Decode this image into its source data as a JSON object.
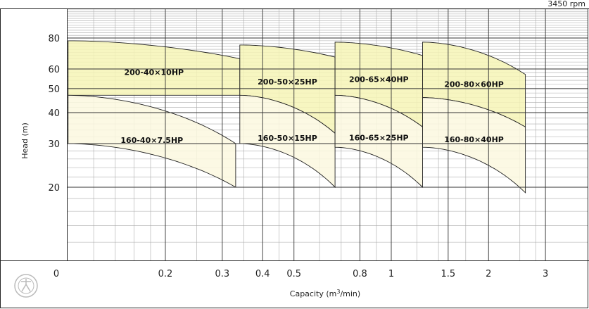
{
  "chart_data": {
    "type": "area",
    "speed_label": "3450 rpm",
    "xlabel": "Capacity (m",
    "xlabel_sup": "3",
    "xlabel_tail": "/min)",
    "ylabel": "Head (m)",
    "x_scale": "log",
    "y_scale": "log",
    "grid": true,
    "colors": {
      "upper_fill": "#f6f5b6",
      "lower_fill": "#fbf8df",
      "outline": "#222222",
      "grid_major": "#333333",
      "grid_minor": "#aaaaaa"
    },
    "y_ticks": [
      "80",
      "60",
      "50",
      "40",
      "30",
      "20"
    ],
    "x_ticks": [
      "0",
      "0.2",
      "0.3",
      "0.4",
      "0.5",
      "0.8",
      "1",
      "1.5",
      "2",
      "3"
    ],
    "regions": [
      {
        "label": "200-40×10HP",
        "tier": "upper",
        "q_min": 0.1,
        "q_max": 0.34,
        "head_left": [
          78,
          47
        ],
        "head_right": [
          66,
          47
        ]
      },
      {
        "label": "160-40×7.5HP",
        "tier": "lower",
        "q_min": 0.1,
        "q_max": 0.33,
        "head_left": [
          47,
          30
        ],
        "head_right": [
          30,
          20
        ]
      },
      {
        "label": "200-50×25HP",
        "tier": "upper",
        "q_min": 0.34,
        "q_max": 0.67,
        "head_left": [
          75,
          47
        ],
        "head_right": [
          67,
          33
        ]
      },
      {
        "label": "160-50×15HP",
        "tier": "lower",
        "q_min": 0.34,
        "q_max": 0.67,
        "head_left": [
          47,
          30
        ],
        "head_right": [
          33,
          20
        ]
      },
      {
        "label": "200-65×40HP",
        "tier": "upper",
        "q_min": 0.67,
        "q_max": 1.25,
        "head_left": [
          77,
          47
        ],
        "head_right": [
          68,
          35
        ]
      },
      {
        "label": "160-65×25HP",
        "tier": "lower",
        "q_min": 0.67,
        "q_max": 1.25,
        "head_left": [
          47,
          29
        ],
        "head_right": [
          35,
          20
        ]
      },
      {
        "label": "200-80×60HP",
        "tier": "upper",
        "q_min": 1.25,
        "q_max": 2.6,
        "head_left": [
          77,
          46
        ],
        "head_right": [
          57,
          35
        ]
      },
      {
        "label": "160-80×40HP",
        "tier": "lower",
        "q_min": 1.25,
        "q_max": 2.6,
        "head_left": [
          46,
          29
        ],
        "head_right": [
          35,
          19
        ]
      }
    ]
  }
}
